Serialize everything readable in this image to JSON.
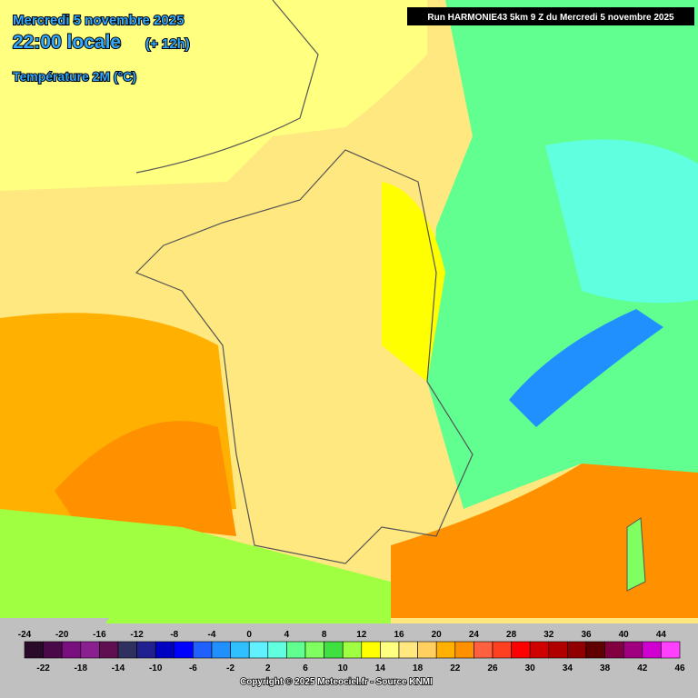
{
  "header": {
    "date": "Mercredi 5 novembre 2025",
    "time": "22:00 locale",
    "offset": "(+ 12h)",
    "variable": "Température 2M (°C)",
    "run": "Run HARMONIE43 5km 9 Z du Mercredi 5 novembre 2025"
  },
  "legend": {
    "values": [
      -24,
      -22,
      -20,
      -18,
      -16,
      -14,
      -12,
      -10,
      -8,
      -6,
      -4,
      -2,
      0,
      2,
      4,
      6,
      8,
      10,
      12,
      14,
      16,
      18,
      20,
      22,
      24,
      26,
      28,
      30,
      32,
      34,
      36,
      38,
      40,
      42,
      44,
      46
    ],
    "colors": [
      "#2a0a2a",
      "#4a0a4a",
      "#7a1080",
      "#8a2090",
      "#601050",
      "#303060",
      "#202090",
      "#0000c0",
      "#0000ff",
      "#2060ff",
      "#2090ff",
      "#30c0ff",
      "#60f0ff",
      "#60ffe0",
      "#60ff90",
      "#80ff60",
      "#40e040",
      "#a0ff40",
      "#ffff00",
      "#ffff80",
      "#ffe880",
      "#ffd060",
      "#ffb000",
      "#ff9000",
      "#ff6040",
      "#ff4020",
      "#ff0000",
      "#d00000",
      "#b00000",
      "#900000",
      "#600000",
      "#800040",
      "#a00080",
      "#d000d0",
      "#ff40ff"
    ]
  },
  "footer": {
    "copyright": "Copyright © 2025 Meteociel.fr - Source KNMI"
  }
}
